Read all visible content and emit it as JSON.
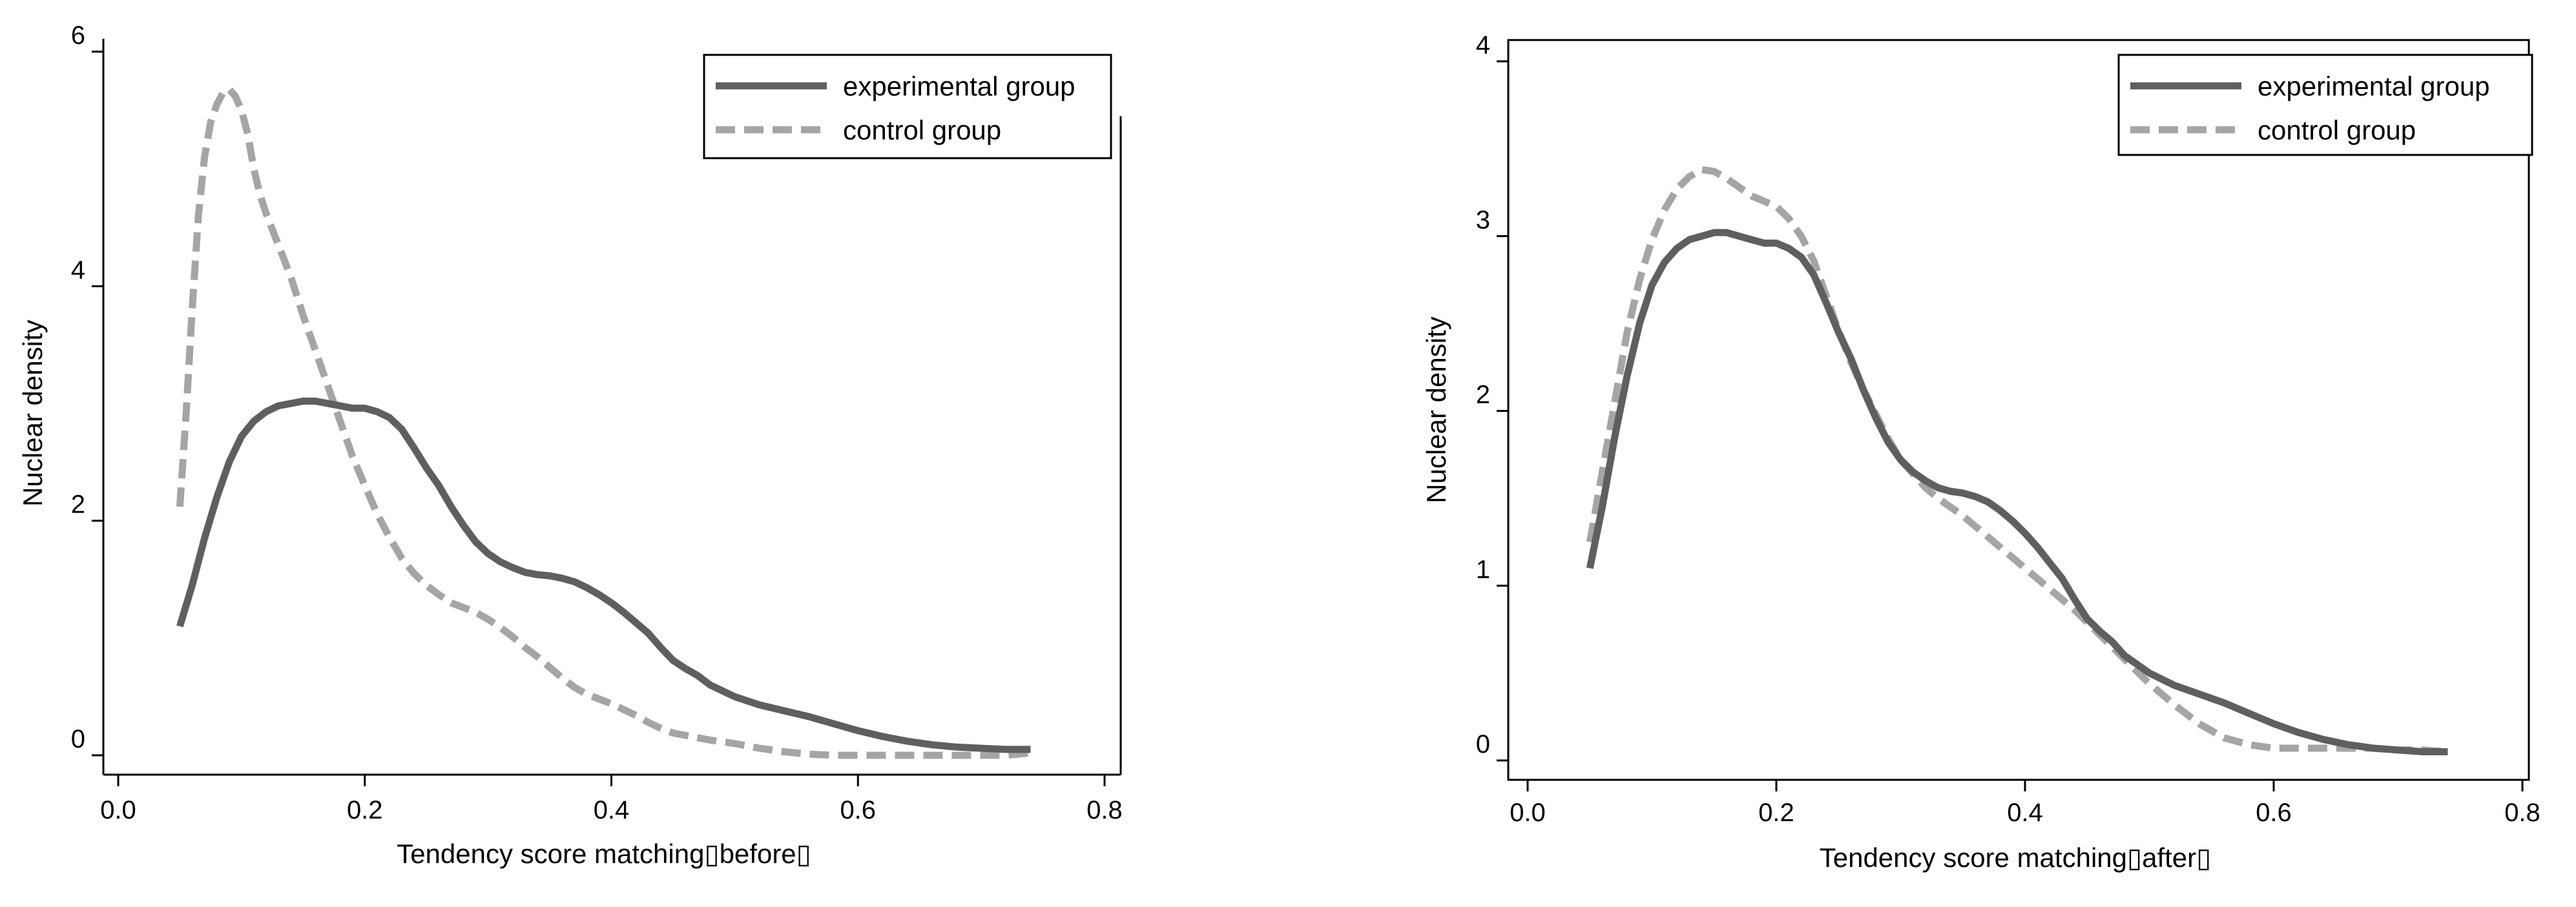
{
  "colors": {
    "experimental": "#5f5f5f",
    "control": "#a5a5a5"
  },
  "chart_data": [
    {
      "type": "line",
      "title": "",
      "xlabel": "Tendency score matching▯before▯",
      "ylabel": "Nuclear density",
      "xlim": [
        0.0,
        0.8
      ],
      "ylim": [
        0,
        6
      ],
      "xticks": [
        0.0,
        0.2,
        0.4,
        0.6,
        0.8
      ],
      "xtick_labels": [
        "0.0",
        "0.2",
        "0.4",
        "0.6",
        "0.8"
      ],
      "yticks": [
        0,
        2,
        4,
        6
      ],
      "ytick_labels": [
        "0",
        "2",
        "4",
        "6"
      ],
      "grid": false,
      "legend_position": "top-right",
      "series": [
        {
          "name": "experimental group",
          "style": "solid",
          "x": [
            0.05,
            0.06,
            0.07,
            0.08,
            0.09,
            0.1,
            0.11,
            0.12,
            0.13,
            0.14,
            0.15,
            0.16,
            0.17,
            0.18,
            0.19,
            0.2,
            0.21,
            0.22,
            0.23,
            0.24,
            0.25,
            0.26,
            0.27,
            0.28,
            0.29,
            0.3,
            0.31,
            0.32,
            0.33,
            0.34,
            0.35,
            0.36,
            0.37,
            0.38,
            0.39,
            0.4,
            0.41,
            0.42,
            0.43,
            0.44,
            0.45,
            0.46,
            0.47,
            0.48,
            0.5,
            0.52,
            0.54,
            0.56,
            0.58,
            0.6,
            0.62,
            0.64,
            0.66,
            0.68,
            0.7,
            0.72,
            0.74
          ],
          "values": [
            1.1,
            1.45,
            1.85,
            2.2,
            2.5,
            2.72,
            2.85,
            2.93,
            2.98,
            3.0,
            3.02,
            3.02,
            3.0,
            2.98,
            2.96,
            2.96,
            2.93,
            2.88,
            2.78,
            2.62,
            2.45,
            2.3,
            2.12,
            1.96,
            1.82,
            1.72,
            1.65,
            1.6,
            1.56,
            1.54,
            1.53,
            1.51,
            1.48,
            1.43,
            1.37,
            1.3,
            1.22,
            1.13,
            1.04,
            0.92,
            0.81,
            0.74,
            0.68,
            0.6,
            0.5,
            0.43,
            0.38,
            0.33,
            0.27,
            0.21,
            0.16,
            0.12,
            0.09,
            0.07,
            0.06,
            0.05,
            0.05
          ]
        },
        {
          "name": "control group",
          "style": "dashed",
          "x": [
            0.05,
            0.055,
            0.06,
            0.065,
            0.07,
            0.075,
            0.08,
            0.085,
            0.09,
            0.095,
            0.1,
            0.105,
            0.11,
            0.115,
            0.12,
            0.13,
            0.14,
            0.15,
            0.16,
            0.17,
            0.18,
            0.19,
            0.2,
            0.21,
            0.22,
            0.23,
            0.24,
            0.25,
            0.26,
            0.27,
            0.28,
            0.29,
            0.3,
            0.31,
            0.32,
            0.33,
            0.34,
            0.35,
            0.36,
            0.37,
            0.38,
            0.39,
            0.4,
            0.41,
            0.42,
            0.43,
            0.44,
            0.45,
            0.46,
            0.47,
            0.48,
            0.5,
            0.52,
            0.54,
            0.56,
            0.58,
            0.6,
            0.62,
            0.64,
            0.66,
            0.68,
            0.7,
            0.72,
            0.74
          ],
          "values": [
            2.12,
            2.9,
            3.8,
            4.6,
            5.1,
            5.4,
            5.55,
            5.65,
            5.68,
            5.62,
            5.5,
            5.3,
            5.0,
            4.78,
            4.62,
            4.35,
            4.08,
            3.75,
            3.45,
            3.15,
            2.85,
            2.55,
            2.3,
            2.06,
            1.86,
            1.68,
            1.55,
            1.45,
            1.37,
            1.3,
            1.26,
            1.22,
            1.16,
            1.09,
            1.01,
            0.92,
            0.84,
            0.75,
            0.66,
            0.58,
            0.52,
            0.48,
            0.44,
            0.39,
            0.34,
            0.28,
            0.23,
            0.19,
            0.17,
            0.15,
            0.13,
            0.1,
            0.06,
            0.03,
            0.01,
            0.0,
            0.0,
            0.0,
            0.0,
            0.0,
            0.0,
            0.0,
            0.0,
            0.02
          ]
        }
      ]
    },
    {
      "type": "line",
      "title": "",
      "xlabel": "Tendency score matching▯after▯",
      "ylabel": "Nuclear density",
      "xlim": [
        0.0,
        0.8
      ],
      "ylim": [
        0,
        4
      ],
      "xticks": [
        0.0,
        0.2,
        0.4,
        0.6,
        0.8
      ],
      "xtick_labels": [
        "0.0",
        "0.2",
        "0.4",
        "0.6",
        "0.8"
      ],
      "yticks": [
        0,
        1,
        2,
        3,
        4
      ],
      "ytick_labels": [
        "0",
        "1",
        "2",
        "3",
        "4"
      ],
      "grid": false,
      "legend_position": "top-right",
      "series": [
        {
          "name": "experimental group",
          "style": "solid",
          "x": [
            0.05,
            0.06,
            0.07,
            0.08,
            0.09,
            0.1,
            0.11,
            0.12,
            0.13,
            0.14,
            0.15,
            0.16,
            0.17,
            0.18,
            0.19,
            0.2,
            0.21,
            0.22,
            0.23,
            0.24,
            0.25,
            0.26,
            0.27,
            0.28,
            0.29,
            0.3,
            0.31,
            0.32,
            0.33,
            0.34,
            0.35,
            0.36,
            0.37,
            0.38,
            0.39,
            0.4,
            0.41,
            0.42,
            0.43,
            0.44,
            0.45,
            0.46,
            0.47,
            0.48,
            0.5,
            0.52,
            0.54,
            0.56,
            0.58,
            0.6,
            0.62,
            0.64,
            0.66,
            0.68,
            0.7,
            0.72,
            0.74
          ],
          "values": [
            1.1,
            1.45,
            1.85,
            2.2,
            2.5,
            2.72,
            2.85,
            2.93,
            2.98,
            3.0,
            3.02,
            3.02,
            3.0,
            2.98,
            2.96,
            2.96,
            2.93,
            2.88,
            2.78,
            2.62,
            2.45,
            2.3,
            2.12,
            1.96,
            1.82,
            1.72,
            1.65,
            1.6,
            1.56,
            1.54,
            1.53,
            1.51,
            1.48,
            1.43,
            1.37,
            1.3,
            1.22,
            1.13,
            1.04,
            0.92,
            0.81,
            0.74,
            0.68,
            0.6,
            0.5,
            0.43,
            0.38,
            0.33,
            0.27,
            0.21,
            0.16,
            0.12,
            0.09,
            0.07,
            0.06,
            0.05,
            0.05
          ]
        },
        {
          "name": "control group",
          "style": "dashed",
          "x": [
            0.05,
            0.06,
            0.07,
            0.08,
            0.09,
            0.1,
            0.11,
            0.12,
            0.13,
            0.14,
            0.15,
            0.16,
            0.17,
            0.18,
            0.19,
            0.2,
            0.21,
            0.22,
            0.23,
            0.24,
            0.25,
            0.26,
            0.27,
            0.28,
            0.29,
            0.3,
            0.31,
            0.32,
            0.33,
            0.34,
            0.35,
            0.36,
            0.37,
            0.38,
            0.39,
            0.4,
            0.41,
            0.42,
            0.43,
            0.44,
            0.45,
            0.46,
            0.47,
            0.48,
            0.5,
            0.52,
            0.54,
            0.56,
            0.58,
            0.6,
            0.62,
            0.64,
            0.66,
            0.68,
            0.7,
            0.72,
            0.74
          ],
          "values": [
            1.25,
            1.65,
            2.05,
            2.45,
            2.75,
            2.98,
            3.15,
            3.27,
            3.34,
            3.38,
            3.37,
            3.33,
            3.28,
            3.23,
            3.2,
            3.17,
            3.1,
            3.0,
            2.86,
            2.66,
            2.46,
            2.28,
            2.12,
            1.98,
            1.84,
            1.72,
            1.64,
            1.56,
            1.5,
            1.45,
            1.4,
            1.34,
            1.28,
            1.22,
            1.16,
            1.1,
            1.04,
            0.98,
            0.92,
            0.86,
            0.79,
            0.72,
            0.65,
            0.58,
            0.44,
            0.32,
            0.21,
            0.13,
            0.09,
            0.07,
            0.07,
            0.07,
            0.07,
            0.07,
            0.06,
            0.06,
            0.05
          ]
        }
      ]
    }
  ]
}
